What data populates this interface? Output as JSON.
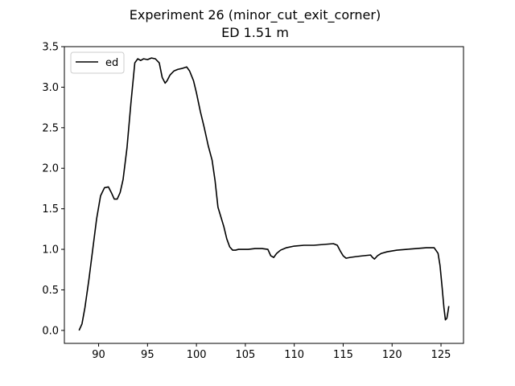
{
  "chart_data": {
    "type": "line",
    "title": "Experiment 26 (minor_cut_exit_corner)",
    "subtitle": "ED 1.51 m",
    "xlabel": "",
    "ylabel": "",
    "xlim": [
      86.5,
      127.3
    ],
    "ylim": [
      -0.16,
      3.5
    ],
    "xticks": [
      90,
      95,
      100,
      105,
      110,
      115,
      120,
      125
    ],
    "yticks": [
      0.0,
      0.5,
      1.0,
      1.5,
      2.0,
      2.5,
      3.0,
      3.5
    ],
    "xtick_labels": [
      "90",
      "95",
      "100",
      "105",
      "110",
      "115",
      "120",
      "125"
    ],
    "ytick_labels": [
      "0.0",
      "0.5",
      "1.0",
      "1.5",
      "2.0",
      "2.5",
      "3.0",
      "3.5"
    ],
    "grid": false,
    "legend_position": "upper-left",
    "series": [
      {
        "name": "ed",
        "color": "#000000",
        "x": [
          88.0,
          88.3,
          88.6,
          89.0,
          89.4,
          89.8,
          90.2,
          90.6,
          91.0,
          91.3,
          91.6,
          91.9,
          92.2,
          92.5,
          92.9,
          93.3,
          93.7,
          94.0,
          94.3,
          94.6,
          95.0,
          95.4,
          95.8,
          96.2,
          96.5,
          96.8,
          97.0,
          97.3,
          97.7,
          98.1,
          98.5,
          99.0,
          99.3,
          99.7,
          100.0,
          100.4,
          100.8,
          101.2,
          101.6,
          101.9,
          102.2,
          102.5,
          102.8,
          103.1,
          103.4,
          103.7,
          104.0,
          104.3,
          104.7,
          105.3,
          106.0,
          106.7,
          107.3,
          107.6,
          107.9,
          108.2,
          108.6,
          109.2,
          110.0,
          111.0,
          112.0,
          113.0,
          114.0,
          114.4,
          114.7,
          115.0,
          115.3,
          115.7,
          116.3,
          117.0,
          117.8,
          118.0,
          118.2,
          118.5,
          118.9,
          119.5,
          120.5,
          121.5,
          122.5,
          123.5,
          124.3,
          124.7,
          124.9,
          125.1,
          125.3,
          125.45,
          125.6,
          125.7,
          125.8
        ],
        "y": [
          0.0,
          0.08,
          0.28,
          0.62,
          1.0,
          1.38,
          1.66,
          1.76,
          1.77,
          1.7,
          1.62,
          1.62,
          1.7,
          1.86,
          2.25,
          2.8,
          3.3,
          3.35,
          3.33,
          3.35,
          3.34,
          3.36,
          3.35,
          3.3,
          3.12,
          3.05,
          3.08,
          3.15,
          3.2,
          3.22,
          3.23,
          3.25,
          3.2,
          3.08,
          2.93,
          2.7,
          2.5,
          2.28,
          2.1,
          1.85,
          1.52,
          1.4,
          1.28,
          1.13,
          1.03,
          0.99,
          0.99,
          1.0,
          1.0,
          1.0,
          1.01,
          1.01,
          1.0,
          0.92,
          0.9,
          0.95,
          0.99,
          1.02,
          1.04,
          1.05,
          1.05,
          1.06,
          1.07,
          1.05,
          0.98,
          0.92,
          0.89,
          0.9,
          0.91,
          0.92,
          0.93,
          0.9,
          0.88,
          0.92,
          0.95,
          0.97,
          0.99,
          1.0,
          1.01,
          1.02,
          1.02,
          0.95,
          0.8,
          0.55,
          0.28,
          0.13,
          0.15,
          0.22,
          0.3
        ]
      }
    ]
  }
}
